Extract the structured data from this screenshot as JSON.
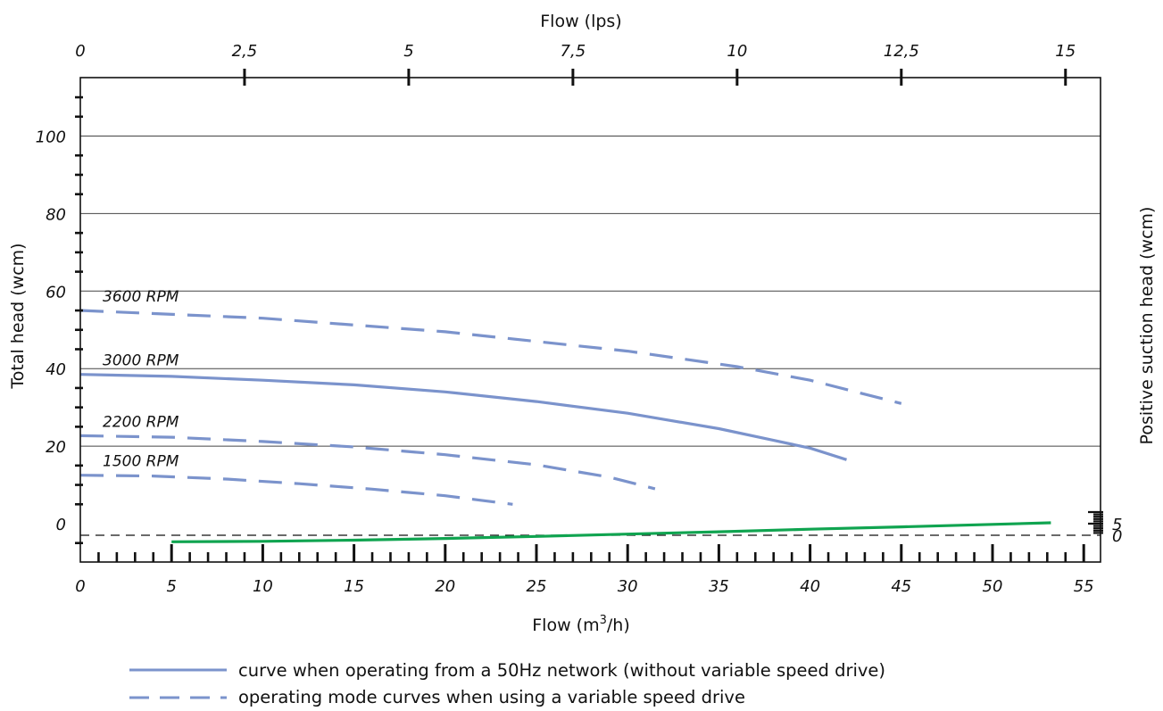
{
  "chart_data": {
    "type": "line",
    "title": "",
    "x_bottom": {
      "label": "Flow (m",
      "label_sup": "3",
      "label_tail": "/h)",
      "range": [
        0,
        56
      ],
      "ticks": [
        0,
        5,
        10,
        15,
        20,
        25,
        30,
        35,
        40,
        45,
        50,
        55
      ],
      "tick_labels": [
        "0",
        "5",
        "10",
        "15",
        "20",
        "25",
        "30",
        "35",
        "40",
        "45",
        "50",
        "55"
      ]
    },
    "x_top": {
      "label": "Flow (lps)",
      "ticks": [
        0,
        2.5,
        5,
        7.5,
        10,
        12.5,
        15
      ],
      "tick_labels": [
        "0",
        "2,5",
        "5",
        "7,5",
        "10",
        "12,5",
        "15"
      ]
    },
    "y_left": {
      "label": "Total head (wcm)",
      "range": [
        -10,
        115
      ],
      "ticks": [
        0,
        20,
        40,
        60,
        80,
        100
      ],
      "tick_labels": [
        "0",
        "20",
        "40",
        "60",
        "80",
        "100"
      ],
      "gridlines": [
        20,
        40,
        60,
        80,
        100
      ]
    },
    "y_right": {
      "label": "Positive suction head (wcm)",
      "ticks": [
        0,
        5
      ],
      "tick_labels": [
        "0",
        "5"
      ]
    },
    "series": [
      {
        "name": "3600 RPM",
        "style": "dashed",
        "color": "#7b93cc",
        "x": [
          0,
          10,
          20,
          30,
          36,
          40,
          45
        ],
        "y": [
          55,
          53,
          49.5,
          44.5,
          40.5,
          37,
          31
        ]
      },
      {
        "name": "3000 RPM",
        "style": "solid",
        "color": "#7b93cc",
        "x": [
          0,
          5,
          10,
          15,
          20,
          25,
          30,
          35,
          38,
          40,
          42
        ],
        "y": [
          38.5,
          38,
          37,
          35.8,
          34,
          31.5,
          28.5,
          24.5,
          21.5,
          19.5,
          16.5
        ]
      },
      {
        "name": "2200 RPM",
        "style": "dashed",
        "color": "#7b93cc",
        "x": [
          0,
          5,
          10,
          15,
          20,
          25,
          29,
          31.5
        ],
        "y": [
          22.7,
          22.3,
          21.2,
          19.8,
          17.8,
          15.2,
          12,
          9
        ]
      },
      {
        "name": "1500 RPM",
        "style": "dashed",
        "color": "#7b93cc",
        "x": [
          0,
          4,
          8,
          12,
          16,
          20,
          22,
          23.7
        ],
        "y": [
          12.5,
          12.3,
          11.5,
          10.3,
          8.9,
          7.2,
          6,
          5
        ]
      },
      {
        "name": "",
        "style": "solid",
        "color": "#10a450",
        "axis": "right",
        "x": [
          5,
          10,
          15,
          20,
          25,
          30,
          35,
          40,
          45,
          50,
          53.2
        ],
        "y": [
          -2.8,
          -2.6,
          -2.1,
          -1.4,
          -0.5,
          0.5,
          1.5,
          2.6,
          3.6,
          4.7,
          5.4
        ]
      }
    ],
    "reference_line": {
      "y": -3,
      "style": "dashed",
      "color": "#111111"
    },
    "legend": {
      "placement": "bottom-left",
      "entries": [
        {
          "style": "solid",
          "color": "#7b93cc",
          "text": "curve when operating from a 50Hz network (without variable speed drive)"
        },
        {
          "style": "dashed",
          "color": "#7b93cc",
          "text": "operating mode curves when using a variable speed drive"
        }
      ]
    }
  }
}
